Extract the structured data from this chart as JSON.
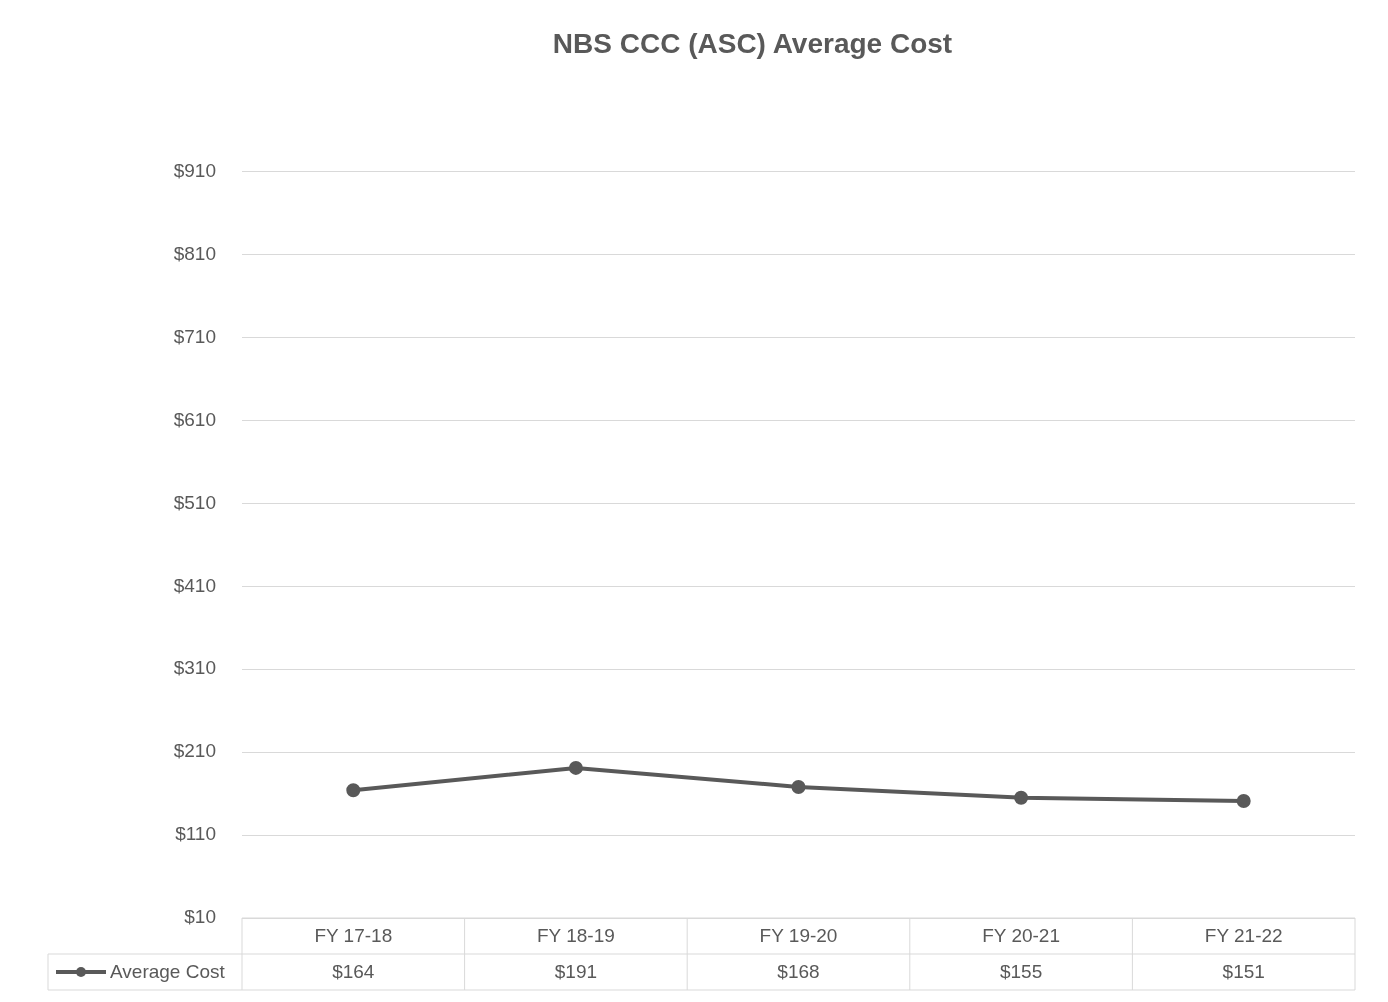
{
  "chart_data": {
    "type": "line",
    "title": "NBS CCC (ASC) Average Cost",
    "categories": [
      "FY 17-18",
      "FY 18-19",
      "FY 19-20",
      "FY 20-21",
      "FY 21-22"
    ],
    "series": [
      {
        "name": "Average Cost",
        "color": "#595959",
        "values": [
          164,
          191,
          168,
          155,
          151
        ],
        "value_labels": [
          "$164",
          "$191",
          "$168",
          "$155",
          "$151"
        ]
      }
    ],
    "ylim": [
      10,
      910
    ],
    "yticks": [
      {
        "value": 10,
        "label": "$10"
      },
      {
        "value": 110,
        "label": "$110"
      },
      {
        "value": 210,
        "label": "$210"
      },
      {
        "value": 310,
        "label": "$310"
      },
      {
        "value": 410,
        "label": "$410"
      },
      {
        "value": 510,
        "label": "$510"
      },
      {
        "value": 610,
        "label": "$610"
      },
      {
        "value": 710,
        "label": "$710"
      },
      {
        "value": 810,
        "label": "$810"
      },
      {
        "value": 910,
        "label": "$910"
      }
    ],
    "grid": "y",
    "legend": "bottom left",
    "marker": "circle",
    "data_labels": true
  }
}
